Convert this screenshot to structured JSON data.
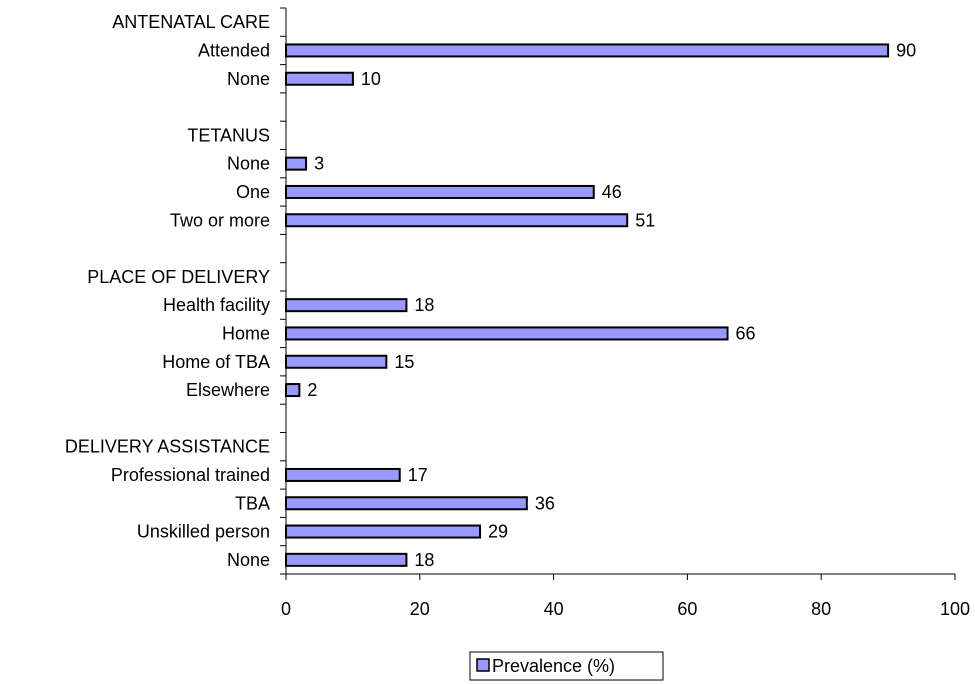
{
  "chart_data": {
    "type": "bar",
    "orientation": "horizontal",
    "categories": [
      "ANTENATAL CARE",
      "Attended",
      "None",
      "",
      "TETANUS",
      "None",
      "One",
      "Two or more",
      "",
      "PLACE OF DELIVERY",
      "Health facility",
      "Home",
      "Home of TBA",
      "Elsewhere",
      "",
      "DELIVERY ASSISTANCE",
      "Professional trained",
      "TBA",
      "Unskilled person",
      "None"
    ],
    "series": [
      {
        "name": "Prevalence (%)",
        "values": [
          null,
          90,
          10,
          null,
          null,
          3,
          46,
          51,
          null,
          null,
          18,
          66,
          15,
          2,
          null,
          null,
          17,
          36,
          29,
          18
        ]
      }
    ],
    "data_labels": [
      "",
      "90",
      "10",
      "",
      "",
      "3",
      "46",
      "51",
      "",
      "",
      "18",
      "66",
      "15",
      "2",
      "",
      "",
      "17",
      "36",
      "29",
      "18"
    ],
    "xlim": [
      0,
      100
    ],
    "x_ticks": [
      "0",
      "20",
      "40",
      "60",
      "80",
      "100"
    ],
    "grid": false,
    "legend_position": "bottom",
    "bar_color": "#9999ff",
    "bar_edge_color": "#000000"
  }
}
